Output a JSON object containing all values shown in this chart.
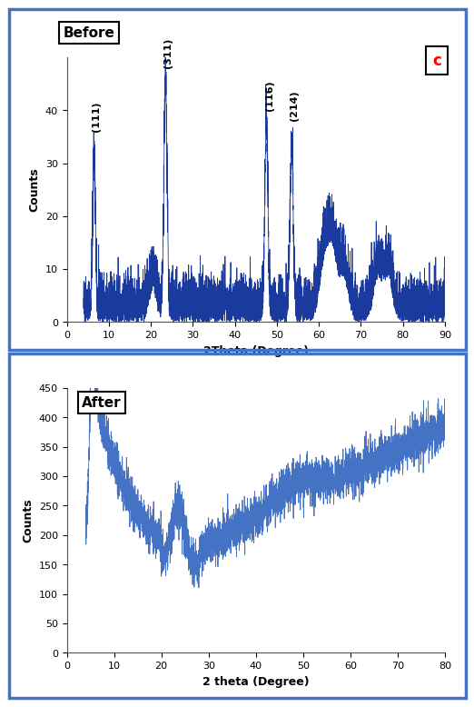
{
  "top_chart": {
    "title": "Before",
    "xlabel": "2Theta (Degree)",
    "ylabel": "Counts",
    "xlim": [
      0,
      90
    ],
    "ylim": [
      0,
      50
    ],
    "yticks": [
      0,
      10,
      20,
      30,
      40
    ],
    "xticks": [
      0,
      10,
      20,
      30,
      40,
      50,
      60,
      70,
      80,
      90
    ],
    "line_color": "#1a3a9e",
    "label_c": "c",
    "label_c_color": "red",
    "noise_seed": 42,
    "base_noise": 3,
    "noise_amp": 3
  },
  "bottom_chart": {
    "title": "After",
    "xlabel": "2 theta (Degree)",
    "ylabel": "Counts",
    "xlim": [
      0,
      80
    ],
    "ylim": [
      0,
      450
    ],
    "yticks": [
      0,
      50,
      100,
      150,
      200,
      250,
      300,
      350,
      400,
      450
    ],
    "xticks": [
      0,
      10,
      20,
      30,
      40,
      50,
      60,
      70,
      80
    ],
    "line_color": "#4472c4",
    "noise_seed": 77,
    "base_noise": 18
  },
  "bg_color": "#ffffff",
  "border_color": "#4472c4",
  "font_color": "#000000"
}
